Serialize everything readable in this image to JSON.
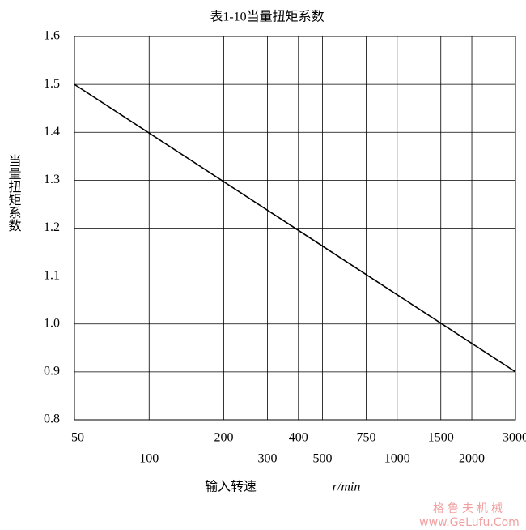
{
  "chart_data": {
    "type": "line",
    "title": "表1-10当量扭矩系数",
    "xlabel": "输入转速",
    "xunit": "r/min",
    "ylabel": "当量扭矩系数",
    "x": [
      50,
      3000
    ],
    "values": [
      1.5,
      0.9
    ],
    "color": "#000000",
    "xscale": "log",
    "xlim": [
      50,
      3000
    ],
    "xticks": [
      50,
      100,
      200,
      300,
      400,
      500,
      750,
      1000,
      1500,
      2000,
      3000
    ],
    "ylim": [
      0.8,
      1.6
    ],
    "yticks": [
      0.8,
      0.9,
      {
        "value": 1,
        "label": "1.0"
      },
      1.1,
      1.2,
      1.3,
      1.4,
      1.5,
      1.6
    ],
    "grid": true,
    "watermark": [
      "格鲁夫机械",
      "www.GeLufu.Com"
    ]
  }
}
